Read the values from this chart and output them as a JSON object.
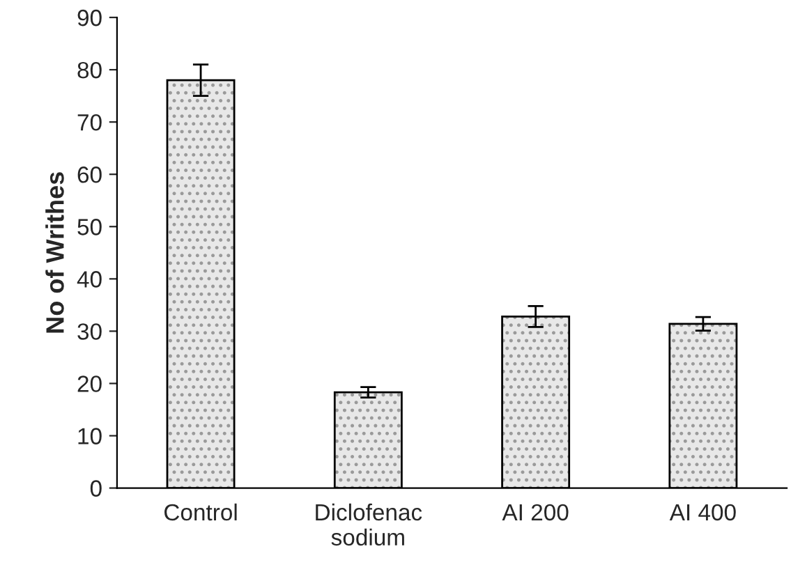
{
  "chart_data": {
    "type": "bar",
    "ylabel": "No of Writhes",
    "categories": [
      "Control",
      "Diclofenac\nsodium",
      "AI 200",
      "AI 400"
    ],
    "values": [
      78,
      18.3,
      32.8,
      31.4
    ],
    "errors": [
      3,
      1,
      2,
      1.3
    ],
    "color": "#e8e8e8",
    "ylim": [
      0,
      90
    ],
    "yticks": [
      0,
      10,
      20,
      30,
      40,
      50,
      60,
      70,
      80,
      90
    ],
    "grid": false
  }
}
